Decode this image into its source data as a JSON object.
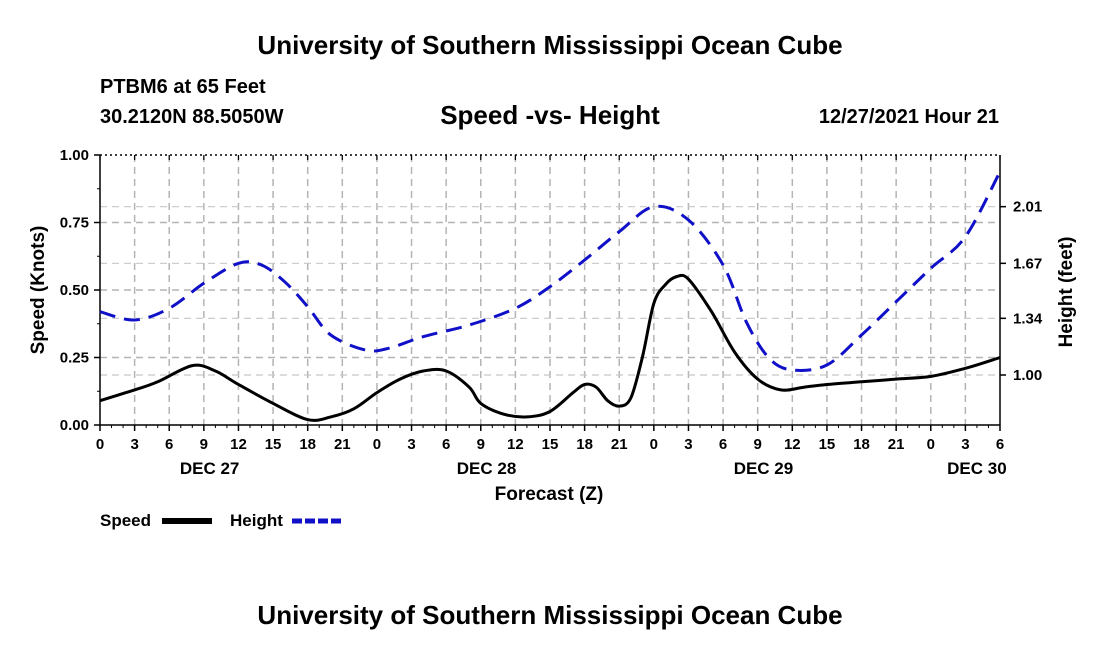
{
  "header": {
    "title": "University of Southern Mississippi Ocean Cube",
    "station": "PTBM6 at 65 Feet",
    "coords": "30.2120N  88.5050W",
    "subtitle": "Speed -vs- Height",
    "datetime": "12/27/2021 Hour 21"
  },
  "footer": {
    "title": "University of Southern Mississippi Ocean Cube"
  },
  "chart_data": {
    "type": "line",
    "xlabel": "Forecast (Z)",
    "ylabel": "Speed (Knots)",
    "y2label": "Height (feet)",
    "xlim": [
      0,
      78
    ],
    "ylim": [
      0,
      1
    ],
    "y2lim": [
      0.7,
      2.32
    ],
    "grid": true,
    "x_ticks": [
      0,
      3,
      6,
      9,
      12,
      15,
      18,
      21,
      24,
      27,
      30,
      33,
      36,
      39,
      42,
      45,
      48,
      51,
      54,
      57,
      60,
      63,
      66,
      69,
      72,
      75,
      78
    ],
    "x_tick_labels": [
      "0",
      "3",
      "6",
      "9",
      "12",
      "15",
      "18",
      "21",
      "0",
      "3",
      "6",
      "9",
      "12",
      "15",
      "18",
      "21",
      "0",
      "3",
      "6",
      "9",
      "12",
      "15",
      "18",
      "21",
      "0",
      "3",
      "6"
    ],
    "y_ticks": [
      0,
      0.25,
      0.5,
      0.75,
      1.0
    ],
    "y_tick_labels": [
      "0.00",
      "0.25",
      "0.50",
      "0.75",
      "1.00"
    ],
    "y2_ticks": [
      1.0,
      1.34,
      1.67,
      2.01
    ],
    "y2_tick_labels": [
      "1.00",
      "1.34",
      "1.67",
      "2.01"
    ],
    "day_labels": [
      {
        "hour": 9.5,
        "label": "DEC 27"
      },
      {
        "hour": 33.5,
        "label": "DEC 28"
      },
      {
        "hour": 57.5,
        "label": "DEC 29"
      },
      {
        "hour": 76,
        "label": "DEC 30"
      }
    ],
    "legend": [
      {
        "name": "Speed",
        "color": "#000000",
        "dash": false
      },
      {
        "name": "Height",
        "color": "#1010c8",
        "dash": true
      }
    ],
    "series": [
      {
        "name": "Speed",
        "axis": "left",
        "color": "#000000",
        "dash": false,
        "x": [
          0,
          3,
          5,
          8,
          10,
          12,
          15,
          18,
          20,
          22,
          24,
          26,
          28,
          30,
          32,
          33,
          35,
          37,
          39,
          41,
          42,
          43,
          44,
          45,
          46,
          47,
          48,
          49,
          50,
          51,
          53,
          55,
          57,
          59,
          61,
          63,
          66,
          69,
          72,
          75,
          78
        ],
        "y": [
          0.09,
          0.13,
          0.16,
          0.22,
          0.2,
          0.15,
          0.08,
          0.02,
          0.03,
          0.06,
          0.12,
          0.17,
          0.2,
          0.2,
          0.14,
          0.08,
          0.04,
          0.03,
          0.05,
          0.12,
          0.15,
          0.14,
          0.09,
          0.07,
          0.1,
          0.25,
          0.45,
          0.52,
          0.55,
          0.54,
          0.42,
          0.27,
          0.17,
          0.13,
          0.14,
          0.15,
          0.16,
          0.17,
          0.18,
          0.21,
          0.25
        ]
      },
      {
        "name": "Height",
        "axis": "right",
        "color": "#1010c8",
        "dash": true,
        "x": [
          0,
          3,
          6,
          9,
          12,
          14,
          16,
          18,
          20,
          23,
          25,
          28,
          32,
          36,
          39,
          42,
          45,
          48,
          51,
          54,
          56,
          58,
          60,
          63,
          66,
          69,
          72,
          75,
          78
        ],
        "y": [
          1.38,
          1.33,
          1.4,
          1.55,
          1.67,
          1.66,
          1.56,
          1.41,
          1.24,
          1.15,
          1.16,
          1.23,
          1.3,
          1.4,
          1.53,
          1.69,
          1.86,
          2.01,
          1.93,
          1.66,
          1.32,
          1.1,
          1.03,
          1.06,
          1.24,
          1.44,
          1.64,
          1.83,
          2.22
        ]
      }
    ]
  }
}
